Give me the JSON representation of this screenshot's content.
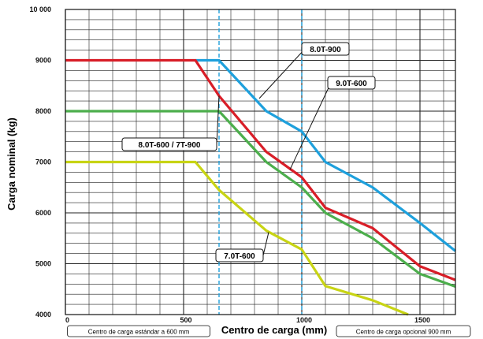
{
  "chart_data": {
    "type": "line",
    "xlabel": "Centro de carga (mm)",
    "ylabel": "Carga nominal (kg)",
    "xlim": [
      0,
      1650
    ],
    "ylim": [
      4000,
      10000
    ],
    "x_ticks": [
      {
        "value": 0,
        "label": "0"
      },
      {
        "value": 500,
        "label": "500"
      },
      {
        "value": 1000,
        "label": "1000"
      },
      {
        "value": 1500,
        "label": "1500"
      }
    ],
    "y_ticks": [
      {
        "value": 4000,
        "label": "4000"
      },
      {
        "value": 5000,
        "label": "5000"
      },
      {
        "value": 6000,
        "label": "6000"
      },
      {
        "value": 7000,
        "label": "7000"
      },
      {
        "value": 8000,
        "label": "8000"
      },
      {
        "value": 9000,
        "label": "9000"
      },
      {
        "value": 10000,
        "label": "10 000"
      }
    ],
    "grid": true,
    "minor_grid": {
      "x_step": 100,
      "y_step": 200
    },
    "series": [
      {
        "name": "8.0T-900",
        "color": "#1ea0dc",
        "x": [
          550,
          650,
          850,
          1000,
          1100,
          1300,
          1500,
          1650
        ],
        "y": [
          9000,
          9000,
          8000,
          7600,
          7000,
          6500,
          5800,
          5250
        ]
      },
      {
        "name": "8.0T-600 / 7T-900",
        "color": "#d81e28",
        "x": [
          0,
          550,
          650,
          850,
          1000,
          1100,
          1300,
          1500,
          1650
        ],
        "y": [
          9000,
          9000,
          8300,
          7200,
          6700,
          6100,
          5700,
          4950,
          4680
        ]
      },
      {
        "name": "9.0T-600",
        "color": "#4cae4c",
        "x": [
          0,
          650,
          850,
          1000,
          1100,
          1300,
          1500,
          1650
        ],
        "y": [
          8000,
          8000,
          7000,
          6500,
          6000,
          5500,
          4800,
          4550
        ]
      },
      {
        "name": "7.0T-600",
        "color": "#c8d414",
        "x": [
          0,
          550,
          650,
          850,
          1000,
          1100,
          1300,
          1450
        ],
        "y": [
          7000,
          7000,
          6450,
          5650,
          5280,
          4560,
          4280,
          4000
        ]
      }
    ],
    "callouts": [
      {
        "text": "8.0T-900",
        "series": 0,
        "anchor": {
          "x": 820,
          "y": 8250
        }
      },
      {
        "text": "9.0T-600",
        "series": 2,
        "anchor": {
          "x": 950,
          "y": 6850
        }
      },
      {
        "text": "8.0T-600 / 7T-900",
        "series": 1,
        "anchor": {
          "x": 650,
          "y": 8300
        }
      },
      {
        "text": "7.0T-600",
        "series": 3,
        "anchor": {
          "x": 860,
          "y": 5620
        }
      }
    ],
    "reference_lines": [
      {
        "x": 650,
        "style": "dashed",
        "color": "#1ea0dc",
        "note": "Centro de carga estándar a 600 mm"
      },
      {
        "x": 1000,
        "style": "dashed",
        "color": "#1ea0dc",
        "note": "Centro de carga opcional 900 mm"
      }
    ]
  }
}
